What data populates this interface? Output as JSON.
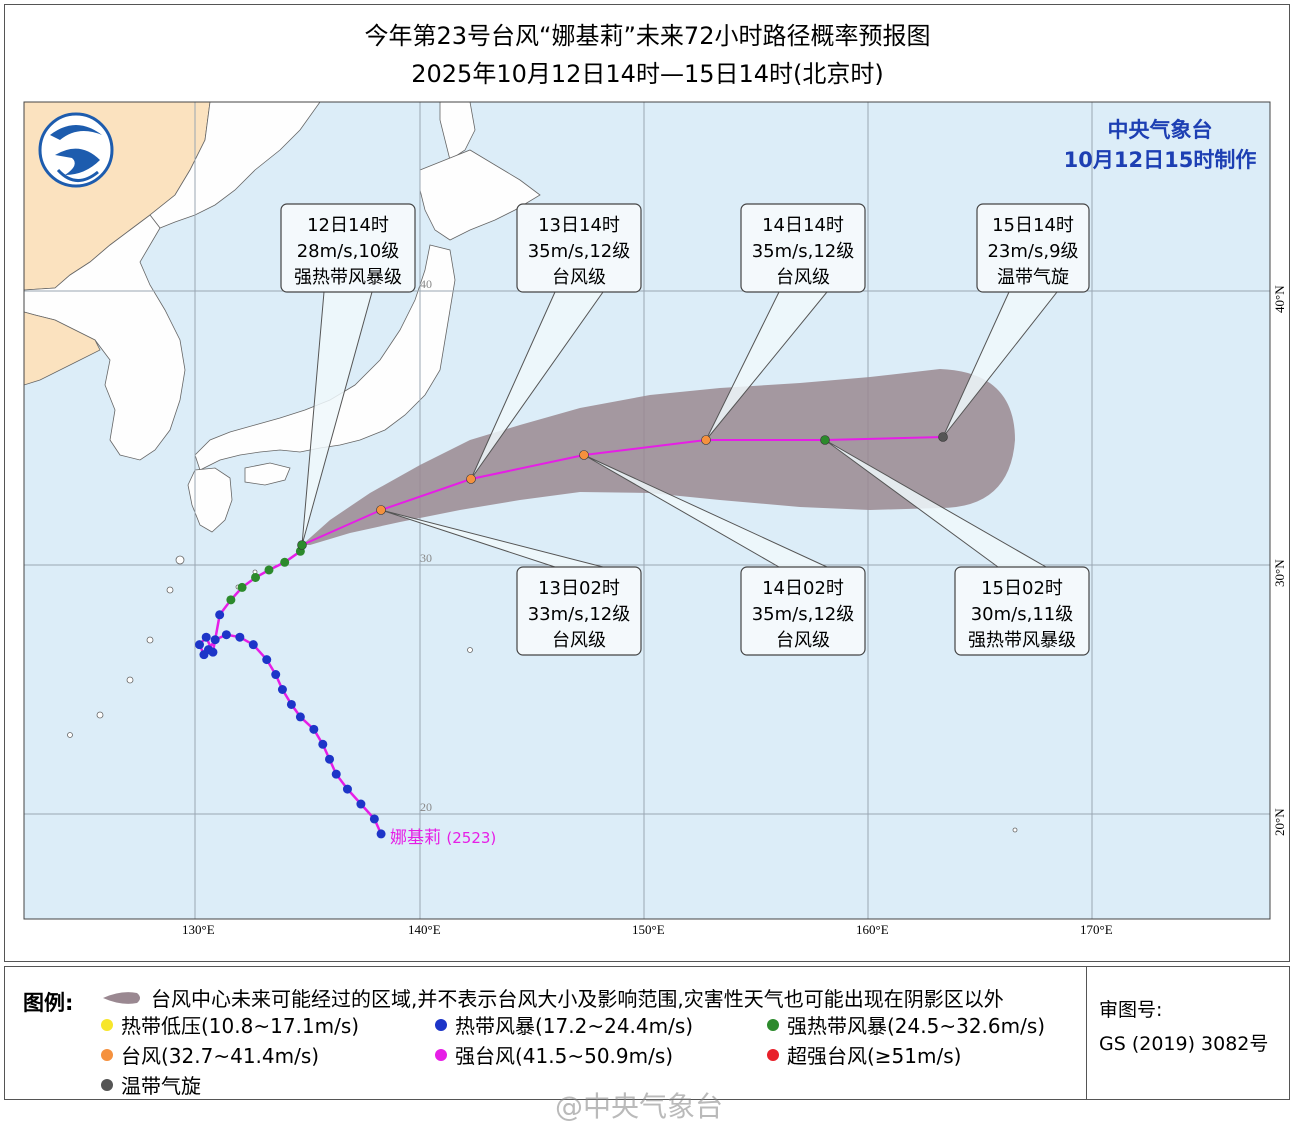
{
  "title_line1": "今年第23号台风“娜基莉”未来72小时路径概率预报图",
  "title_line2": "2025年10月12日14时—15日14时(北京时)",
  "issuer": {
    "name": "中央气象台",
    "issued": "10月12日15时制作"
  },
  "colors": {
    "sea": "#dcedf8",
    "land": "#fefefe",
    "china_land": "#fbe2bf",
    "track": "#e61ee6",
    "cone": "#9a8891",
    "tropical_depression": "#f7e62b",
    "tropical_storm": "#1d35c8",
    "severe_tropical_storm": "#2c8a2c",
    "typhoon": "#f5913e",
    "severe_typhoon": "#e61ee6",
    "super_typhoon": "#e8202a",
    "extratropical": "#555555"
  },
  "axes": {
    "lon_labels": [
      "130°E",
      "140°E",
      "150°E",
      "160°E",
      "170°E"
    ],
    "lat_labels": [
      "40°N",
      "30°N",
      "20°N"
    ],
    "lat_inner_labels": [
      "40",
      "30",
      "20"
    ]
  },
  "typhoon_label": {
    "name": "娜基莉",
    "code": "(2523)"
  },
  "forecast_points": [
    {
      "id": "12d14",
      "time": "12日14时",
      "speed": "28m/s,10级",
      "level": "强热带风暴级",
      "category": "severe_tropical_storm"
    },
    {
      "id": "13d02",
      "time": "13日02时",
      "speed": "33m/s,12级",
      "level": "台风级",
      "category": "typhoon"
    },
    {
      "id": "13d14",
      "time": "13日14时",
      "speed": "35m/s,12级",
      "level": "台风级",
      "category": "typhoon"
    },
    {
      "id": "14d02",
      "time": "14日02时",
      "speed": "35m/s,12级",
      "level": "台风级",
      "category": "typhoon"
    },
    {
      "id": "14d14",
      "time": "14日14时",
      "speed": "35m/s,12级",
      "level": "台风级",
      "category": "typhoon"
    },
    {
      "id": "15d02",
      "time": "15日02时",
      "speed": "30m/s,11级",
      "level": "强热带风暴级",
      "category": "severe_tropical_storm"
    },
    {
      "id": "15d14",
      "time": "15日14时",
      "speed": "23m/s,9级",
      "level": "温带气旋",
      "category": "extratropical"
    }
  ],
  "past_track_points": [
    {
      "lon": 138.3,
      "lat": 19.2,
      "category": "tropical_storm"
    },
    {
      "lon": 138.0,
      "lat": 19.8,
      "category": "tropical_storm"
    },
    {
      "lon": 137.4,
      "lat": 20.4,
      "category": "tropical_storm"
    },
    {
      "lon": 136.8,
      "lat": 21.0,
      "category": "tropical_storm"
    },
    {
      "lon": 136.3,
      "lat": 21.6,
      "category": "tropical_storm"
    },
    {
      "lon": 136.0,
      "lat": 22.2,
      "category": "tropical_storm"
    },
    {
      "lon": 135.7,
      "lat": 22.8,
      "category": "tropical_storm"
    },
    {
      "lon": 135.3,
      "lat": 23.4,
      "category": "tropical_storm"
    },
    {
      "lon": 134.7,
      "lat": 23.9,
      "category": "tropical_storm"
    },
    {
      "lon": 134.3,
      "lat": 24.4,
      "category": "tropical_storm"
    },
    {
      "lon": 133.9,
      "lat": 25.0,
      "category": "tropical_storm"
    },
    {
      "lon": 133.6,
      "lat": 25.6,
      "category": "tropical_storm"
    },
    {
      "lon": 133.2,
      "lat": 26.2,
      "category": "tropical_storm"
    },
    {
      "lon": 132.6,
      "lat": 26.8,
      "category": "tropical_storm"
    },
    {
      "lon": 132.0,
      "lat": 27.1,
      "category": "tropical_storm"
    },
    {
      "lon": 131.4,
      "lat": 27.2,
      "category": "tropical_storm"
    },
    {
      "lon": 130.9,
      "lat": 27.0,
      "category": "tropical_storm"
    },
    {
      "lon": 130.6,
      "lat": 26.6,
      "category": "tropical_storm"
    },
    {
      "lon": 130.4,
      "lat": 26.4,
      "category": "tropical_storm"
    },
    {
      "lon": 130.2,
      "lat": 26.8,
      "category": "tropical_storm"
    },
    {
      "lon": 130.5,
      "lat": 27.1,
      "category": "tropical_storm"
    },
    {
      "lon": 130.8,
      "lat": 26.5,
      "category": "tropical_storm"
    },
    {
      "lon": 131.1,
      "lat": 28.0,
      "category": "tropical_storm"
    },
    {
      "lon": 131.6,
      "lat": 28.6,
      "category": "severe_tropical_storm"
    },
    {
      "lon": 132.1,
      "lat": 29.1,
      "category": "severe_tropical_storm"
    },
    {
      "lon": 132.7,
      "lat": 29.5,
      "category": "severe_tropical_storm"
    },
    {
      "lon": 133.3,
      "lat": 29.8,
      "category": "severe_tropical_storm"
    },
    {
      "lon": 134.0,
      "lat": 30.1,
      "category": "severe_tropical_storm"
    },
    {
      "lon": 134.7,
      "lat": 30.5,
      "category": "severe_tropical_storm"
    }
  ],
  "legend": {
    "title": "图例:",
    "cone_text": "台风中心未来可能经过的区域,并不表示台风大小及影响范围,灾害性天气也可能出现在阴影区以外",
    "items": [
      {
        "label": "热带低压(10.8~17.1m/s)",
        "category": "tropical_depression"
      },
      {
        "label": "热带风暴(17.2~24.4m/s)",
        "category": "tropical_storm"
      },
      {
        "label": "强热带风暴(24.5~32.6m/s)",
        "category": "severe_tropical_storm"
      },
      {
        "label": "台风(32.7~41.4m/s)",
        "category": "typhoon"
      },
      {
        "label": "强台风(41.5~50.9m/s)",
        "category": "severe_typhoon"
      },
      {
        "label": "超强台风(≥51m/s)",
        "category": "super_typhoon"
      },
      {
        "label": "温带气旋",
        "category": "extratropical"
      }
    ],
    "review_label": "审图号:",
    "review_number": "GS (2019) 3082号"
  },
  "watermark": "@中央气象台"
}
